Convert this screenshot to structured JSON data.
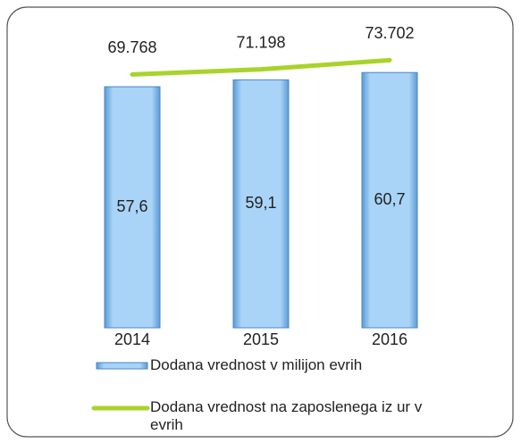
{
  "chart_data": {
    "type": "bar",
    "categories": [
      "2014",
      "2015",
      "2016"
    ],
    "series": [
      {
        "name": "Dodana vrednost v milijon evrih",
        "type": "bar",
        "color": "#8ec3f0",
        "values": [
          57.6,
          59.1,
          60.7
        ],
        "value_labels": [
          "57,6",
          "59,1",
          "60,7"
        ]
      },
      {
        "name": "Dodana vrednost na zaposlenega iz ur v evrih",
        "type": "line",
        "axis": "y2",
        "color": "#a8d32a",
        "values": [
          69768,
          71198,
          73702
        ],
        "value_labels": [
          "69.768",
          "71.198",
          "73.702"
        ]
      }
    ],
    "ylim": [
      5,
      66
    ],
    "y2lim": [
      0,
      77000
    ]
  }
}
